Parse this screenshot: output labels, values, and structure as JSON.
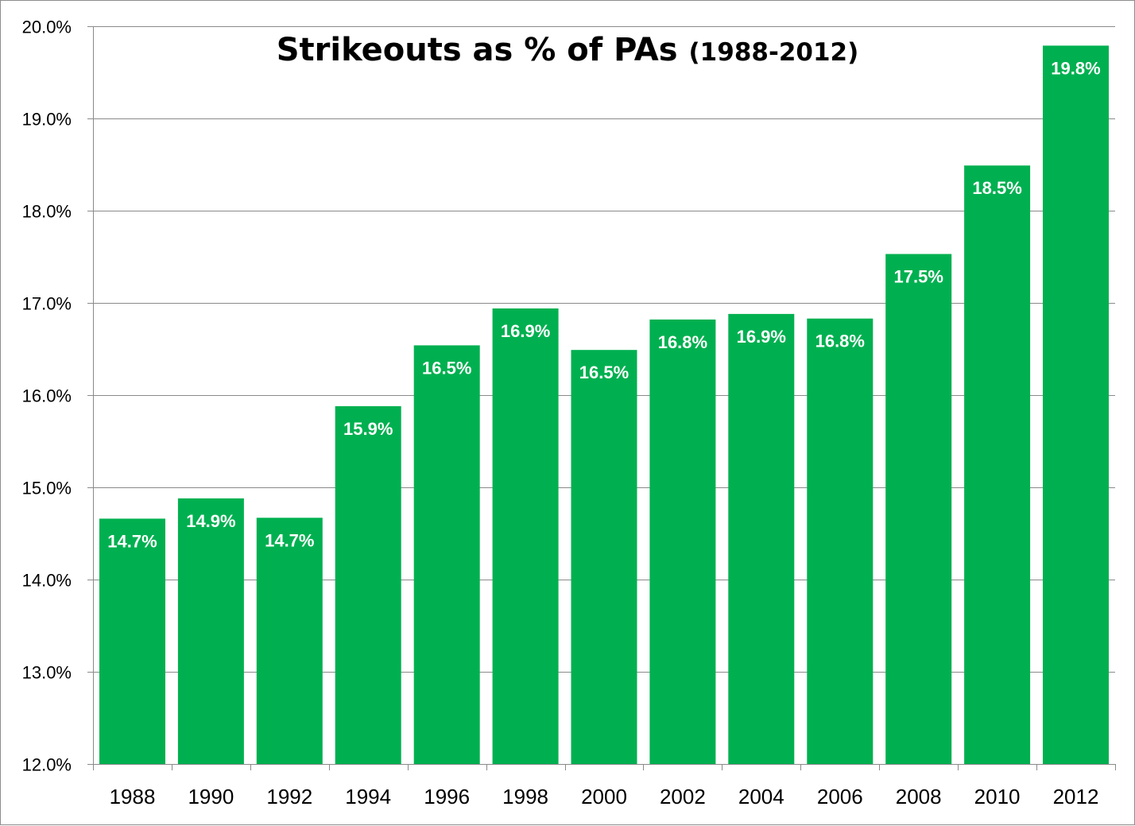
{
  "chart_data": {
    "type": "bar",
    "title": "Strikeouts as % of PAs",
    "subtitle": "(1988-2012)",
    "xlabel": "",
    "ylabel": "",
    "categories": [
      "1988",
      "1990",
      "1992",
      "1994",
      "1996",
      "1998",
      "2000",
      "2002",
      "2004",
      "2006",
      "2008",
      "2010",
      "2012"
    ],
    "values": [
      14.66,
      14.88,
      14.67,
      15.88,
      16.54,
      16.94,
      16.49,
      16.82,
      16.88,
      16.83,
      17.53,
      18.49,
      19.79
    ],
    "data_labels": [
      "14.7%",
      "14.9%",
      "14.7%",
      "15.9%",
      "16.5%",
      "16.9%",
      "16.5%",
      "16.8%",
      "16.9%",
      "16.8%",
      "17.5%",
      "18.5%",
      "19.8%"
    ],
    "ylim": [
      12.0,
      20.0
    ],
    "y_ticks": [
      12.0,
      13.0,
      14.0,
      15.0,
      16.0,
      17.0,
      18.0,
      19.0,
      20.0
    ],
    "y_tick_labels": [
      "12.0%",
      "13.0%",
      "14.0%",
      "15.0%",
      "16.0%",
      "17.0%",
      "18.0%",
      "19.0%",
      "20.0%"
    ],
    "grid": true,
    "legend": "none",
    "bar_color": "#00B050",
    "label_color": "#FFFFFF",
    "grid_color": "#8A8A8A"
  }
}
